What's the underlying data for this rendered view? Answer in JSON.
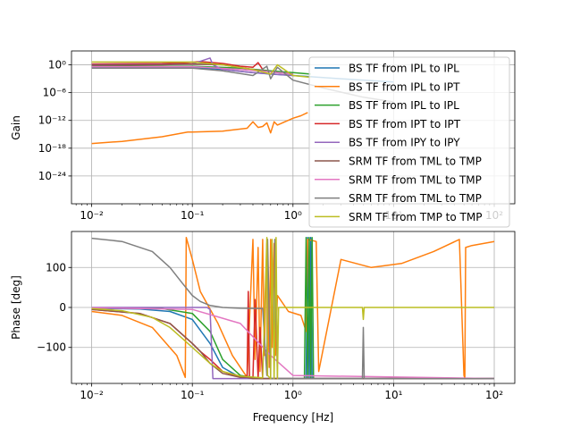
{
  "chart_data": [
    {
      "type": "line",
      "panel": "gain",
      "xscale": "log",
      "yscale": "log",
      "xlim": [
        0.0063,
        160
      ],
      "ylim": [
        1e-30,
        1000.0
      ],
      "xlabel": "",
      "ylabel": "Gain",
      "grid": true,
      "x_ticks": [
        0.01,
        0.1,
        1,
        10,
        100
      ],
      "x_tick_labels": [
        "10⁻²",
        "10⁻¹",
        "10⁰",
        "10¹",
        "10²"
      ],
      "y_ticks": [
        1,
        1e-06,
        1e-12,
        1e-18,
        1e-24
      ],
      "y_tick_labels": [
        "10⁰",
        "10⁻⁶",
        "10⁻¹²",
        "10⁻¹⁸",
        "10⁻²⁴"
      ],
      "legend_position": "top-right",
      "series": [
        {
          "name": "BS TF from IPL to IPL",
          "color": "#1f77b4",
          "x": [
            0.01,
            0.05,
            0.1,
            0.2,
            0.4,
            0.6,
            1,
            3,
            10
          ],
          "y": [
            0.3,
            0.3,
            0.3,
            0.1,
            0.02,
            0.01,
            0.005,
            0.001,
            0.0002
          ]
        },
        {
          "name": "BS TF from IPL to IPT",
          "color": "#ff7f0e",
          "x": [
            0.01,
            0.02,
            0.05,
            0.09,
            0.1,
            0.2,
            0.35,
            0.4,
            0.45,
            0.5,
            0.55,
            0.6,
            0.65,
            0.7,
            1,
            1.2,
            1.4
          ],
          "y": [
            1e-17,
            3e-17,
            3e-16,
            3e-15,
            3e-15,
            5e-15,
            2e-14,
            5e-13,
            3e-14,
            5e-14,
            3e-13,
            2e-15,
            5e-13,
            1e-13,
            3e-12,
            1e-11,
            5e-11
          ]
        },
        {
          "name": "BS TF from IPL to IPL",
          "color": "#2ca02c",
          "x": [
            0.01,
            0.1,
            0.3,
            0.6,
            1,
            1.5
          ],
          "y": [
            0.5,
            0.5,
            0.2,
            0.05,
            0.02,
            0.01
          ]
        },
        {
          "name": "BS TF from IPT to IPT",
          "color": "#d62728",
          "x": [
            0.01,
            0.05,
            0.09,
            0.12,
            0.2,
            0.3,
            0.4,
            0.45,
            0.5
          ],
          "y": [
            1.5,
            2,
            3,
            5,
            2,
            0.5,
            0.3,
            3,
            0.1
          ]
        },
        {
          "name": "BS TF from IPY to IPY",
          "color": "#9467bd",
          "x": [
            0.01,
            0.05,
            0.1,
            0.15,
            0.16,
            0.2,
            0.4,
            1
          ],
          "y": [
            1,
            1.2,
            1.5,
            30,
            1,
            0.1,
            0.02,
            0.005
          ]
        },
        {
          "name": "SRM TF from TML to TMP",
          "color": "#8c564b",
          "x": [
            0.01,
            0.05,
            0.1,
            0.2,
            0.4,
            0.7,
            1
          ],
          "y": [
            0.8,
            1,
            1.5,
            1,
            0.1,
            0.02,
            0.01
          ]
        },
        {
          "name": "SRM TF from TML to TMP",
          "color": "#e377c2",
          "x": [
            0.01,
            0.1,
            0.3,
            0.6,
            1
          ],
          "y": [
            0.4,
            0.4,
            0.1,
            0.03,
            0.01
          ]
        },
        {
          "name": "SRM TF from TML to TMP",
          "color": "#7f7f7f",
          "x": [
            0.01,
            0.05,
            0.1,
            0.2,
            0.4,
            0.55,
            0.6,
            0.7,
            1,
            2,
            5,
            10
          ],
          "y": [
            0.2,
            0.2,
            0.2,
            0.05,
            0.005,
            0.5,
            0.001,
            0.3,
            0.0005,
            1e-05,
            1e-07,
            1e-08
          ]
        },
        {
          "name": "SRM TF from TMP to TMP",
          "color": "#bcbd22",
          "x": [
            0.01,
            0.05,
            0.1,
            0.2,
            0.4,
            0.6,
            0.7,
            1,
            1.5
          ],
          "y": [
            4,
            4,
            4,
            1,
            0.1,
            0.01,
            1,
            0.005,
            0.002
          ]
        }
      ]
    },
    {
      "type": "line",
      "panel": "phase",
      "xscale": "log",
      "xlim": [
        0.0063,
        160
      ],
      "ylim": [
        -190,
        190
      ],
      "xlabel": "Frequency [Hz]",
      "ylabel": "Phase [deg]",
      "grid": true,
      "x_ticks": [
        0.01,
        0.1,
        1,
        10,
        100
      ],
      "x_tick_labels": [
        "10⁻²",
        "10⁻¹",
        "10⁰",
        "10¹",
        "10²"
      ],
      "y_ticks": [
        100,
        0,
        -100
      ],
      "y_tick_labels": [
        "100",
        "0",
        "−100"
      ],
      "series": [
        {
          "name": "BS TF from IPL to IPL",
          "color": "#1f77b4",
          "x": [
            0.01,
            0.03,
            0.06,
            0.1,
            0.15,
            0.2,
            0.3,
            0.5,
            1,
            1.35,
            1.4,
            1.45,
            1.5,
            1.55,
            100
          ],
          "y": [
            -2,
            -4,
            -10,
            -30,
            -90,
            -150,
            -175,
            -178,
            -178,
            -178,
            175,
            -178,
            175,
            -178,
            -178
          ]
        },
        {
          "name": "BS TF from IPL to IPT",
          "color": "#ff7f0e",
          "x": [
            0.01,
            0.02,
            0.04,
            0.07,
            0.085,
            0.087,
            0.1,
            0.12,
            0.18,
            0.25,
            0.35,
            0.4,
            0.42,
            0.45,
            0.47,
            0.5,
            0.52,
            0.55,
            0.58,
            0.6,
            0.62,
            0.65,
            0.67,
            0.7,
            0.9,
            1.2,
            1.35,
            1.4,
            1.7,
            1.8,
            3,
            6,
            12,
            25,
            45,
            50,
            51,
            52,
            60,
            100
          ],
          "y": [
            -10,
            -20,
            -50,
            -120,
            -175,
            175,
            120,
            40,
            -40,
            -120,
            -175,
            170,
            -130,
            150,
            -160,
            170,
            -120,
            160,
            -150,
            170,
            -100,
            160,
            -120,
            30,
            -10,
            -20,
            -60,
            170,
            165,
            -160,
            120,
            100,
            110,
            140,
            170,
            -170,
            -178,
            150,
            155,
            165
          ]
        },
        {
          "name": "BS TF from IPL to IPL",
          "color": "#2ca02c",
          "x": [
            0.01,
            0.05,
            0.1,
            0.15,
            0.2,
            0.3,
            0.5,
            1,
            1.3,
            1.35,
            1.4,
            1.45,
            1.5,
            1.55,
            1.6,
            100
          ],
          "y": [
            -1,
            -3,
            -15,
            -60,
            -130,
            -170,
            -178,
            -178,
            -178,
            175,
            -178,
            175,
            -178,
            175,
            -178,
            -178
          ]
        },
        {
          "name": "BS TF from IPT to IPT",
          "color": "#d62728",
          "x": [
            0.01,
            0.03,
            0.06,
            0.1,
            0.12,
            0.15,
            0.2,
            0.3,
            0.35,
            0.36,
            0.37,
            0.4,
            0.42,
            0.45,
            0.47,
            0.5,
            0.55,
            100
          ],
          "y": [
            -5,
            -15,
            -40,
            -90,
            -110,
            -130,
            -160,
            -175,
            -170,
            40,
            -175,
            -178,
            20,
            -178,
            -50,
            -178,
            -178,
            -178
          ]
        },
        {
          "name": "BS TF from IPY to IPY",
          "color": "#9467bd",
          "x": [
            0.01,
            0.05,
            0.1,
            0.14,
            0.15,
            0.155,
            0.16,
            0.2,
            1,
            100
          ],
          "y": [
            0,
            0,
            0,
            0,
            -5,
            -90,
            -178,
            -178,
            -178,
            -178
          ]
        },
        {
          "name": "SRM TF from TML to TMP",
          "color": "#8c564b",
          "x": [
            0.01,
            0.03,
            0.06,
            0.1,
            0.12,
            0.15,
            0.2,
            0.3,
            0.35,
            0.4,
            0.5,
            100
          ],
          "y": [
            -5,
            -15,
            -40,
            -90,
            -110,
            -140,
            -165,
            -175,
            -175,
            -178,
            -178,
            -178
          ]
        },
        {
          "name": "SRM TF from TML to TMP",
          "color": "#e377c2",
          "x": [
            0.01,
            0.1,
            0.3,
            0.6,
            1,
            100
          ],
          "y": [
            -1,
            -5,
            -40,
            -120,
            -170,
            -178
          ]
        },
        {
          "name": "SRM TF from TML to TMP",
          "color": "#7f7f7f",
          "x": [
            0.01,
            0.02,
            0.04,
            0.06,
            0.08,
            0.1,
            0.12,
            0.15,
            0.2,
            0.3,
            0.5,
            0.55,
            0.56,
            0.6,
            0.65,
            0.66,
            0.7,
            1,
            3,
            4.9,
            5,
            5.1,
            10,
            100
          ],
          "y": [
            173,
            165,
            140,
            100,
            60,
            30,
            15,
            5,
            0,
            -2,
            -3,
            -170,
            170,
            -178,
            -178,
            170,
            -178,
            -178,
            -178,
            -178,
            -50,
            -178,
            -178,
            -178
          ]
        },
        {
          "name": "SRM TF from TMP to TMP",
          "color": "#bcbd22",
          "x": [
            0.01,
            0.02,
            0.04,
            0.06,
            0.1,
            0.15,
            0.2,
            0.3,
            0.5,
            0.55,
            0.56,
            0.6,
            0.62,
            0.65,
            0.68,
            0.7,
            0.72,
            1,
            3,
            4.9,
            5,
            5.1,
            10,
            100
          ],
          "y": [
            -3,
            -8,
            -25,
            -50,
            -100,
            -140,
            -160,
            -172,
            -176,
            175,
            -170,
            -178,
            170,
            -178,
            175,
            -178,
            0,
            0,
            0,
            0,
            -30,
            0,
            0,
            0
          ]
        }
      ]
    }
  ]
}
